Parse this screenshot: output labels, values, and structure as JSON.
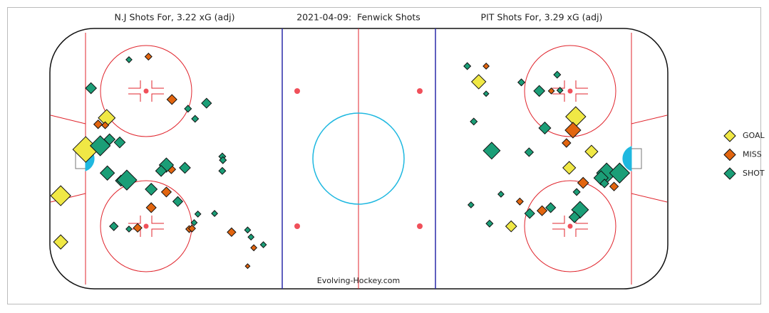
{
  "chart_data": {
    "type": "scatter",
    "title": "2021-04-09:  Fenwick Shots",
    "left_title": "N.J Shots For, 3.22 xG (adj)",
    "right_title": "PIT Shots For, 3.29 xG (adj)",
    "credit": "Evolving-Hockey.com",
    "xlim": [
      -100,
      100
    ],
    "ylim": [
      -42.5,
      42.5
    ],
    "legend": "right",
    "series": [
      {
        "name": "GOAL",
        "color": "#f0e845",
        "x": [
          -81.6,
          -88.4,
          -96.5,
          -96.5,
          38.8,
          70.2,
          75.3,
          68.1,
          49.3
        ],
        "y": [
          13.3,
          3.0,
          -12.1,
          -27.2,
          25.1,
          13.7,
          2.3,
          -3.0,
          -22.1
        ],
        "size": [
          0.06,
          0.16,
          0.09,
          0.04,
          0.04,
          0.09,
          0.03,
          0.03,
          0.02
        ]
      },
      {
        "name": "MISS",
        "color": "#e2650f",
        "x": [
          -68.1,
          -84.4,
          -82.1,
          -60.5,
          -60.7,
          -62.3,
          -67.2,
          -71.6,
          -54.9,
          -54.0,
          -41.2,
          -34.0,
          -36.0,
          41.2,
          62.3,
          69.3,
          67.2,
          82.6,
          72.6,
          52.1,
          59.3
        ],
        "y": [
          33.3,
          11.2,
          10.9,
          19.3,
          -3.5,
          -10.9,
          -16.0,
          -22.6,
          -23.0,
          -22.8,
          -24.0,
          -29.1,
          -35.1,
          30.2,
          22.1,
          9.3,
          5.1,
          -9.1,
          -7.9,
          -14.0,
          -17.0
        ],
        "size": [
          0.005,
          0.01,
          0.005,
          0.015,
          0.01,
          0.015,
          0.015,
          0.01,
          0.005,
          0.005,
          0.01,
          0.003,
          0.001,
          0.003,
          0.003,
          0.05,
          0.01,
          0.01,
          0.02,
          0.005,
          0.015
        ]
      },
      {
        "name": "SHOT",
        "color": "#1b9e77",
        "x": [
          -74.4,
          -86.7,
          -55.3,
          -49.3,
          -53.0,
          -83.7,
          -80.7,
          -77.4,
          -81.4,
          -77.0,
          -75.1,
          -62.3,
          -64.0,
          -56.3,
          -44.2,
          -44.0,
          -44.2,
          -67.2,
          -58.6,
          -79.3,
          -74.4,
          -52.1,
          -46.7,
          -53.3,
          -36.0,
          -34.9,
          -30.9,
          35.1,
          41.2,
          52.6,
          64.2,
          58.4,
          65.1,
          60.2,
          37.2,
          43.0,
          55.1,
          80.2,
          84.4,
          78.4,
          79.5,
          70.5,
          46.0,
          36.3,
          62.1,
          55.3,
          71.6,
          69.8,
          42.3
        ],
        "y": [
          32.3,
          23.0,
          16.3,
          18.1,
          13.0,
          4.2,
          6.3,
          5.3,
          -4.7,
          -7.2,
          -7.0,
          -2.1,
          -4.0,
          -3.0,
          0.7,
          -0.5,
          -4.0,
          -10.0,
          -14.0,
          -22.1,
          -23.0,
          -18.1,
          -17.9,
          -20.9,
          -23.3,
          -25.6,
          -28.1,
          30.2,
          21.2,
          24.9,
          27.4,
          22.1,
          22.3,
          10.0,
          12.1,
          2.6,
          2.1,
          -4.7,
          -4.7,
          -6.3,
          -8.1,
          -10.9,
          -11.6,
          -15.1,
          -16.0,
          -17.9,
          -16.7,
          -19.1,
          -21.2
        ],
        "size": [
          0.003,
          0.02,
          0.005,
          0.015,
          0.005,
          0.09,
          0.02,
          0.02,
          0.04,
          0.02,
          0.09,
          0.04,
          0.02,
          0.02,
          0.005,
          0.005,
          0.005,
          0.025,
          0.015,
          0.01,
          0.003,
          0.003,
          0.003,
          0.003,
          0.003,
          0.003,
          0.003,
          0.005,
          0.002,
          0.005,
          0.005,
          0.02,
          0.003,
          0.025,
          0.005,
          0.06,
          0.01,
          0.09,
          0.09,
          0.04,
          0.01,
          0.005,
          0.003,
          0.003,
          0.015,
          0.015,
          0.06,
          0.02,
          0.005
        ]
      }
    ]
  }
}
